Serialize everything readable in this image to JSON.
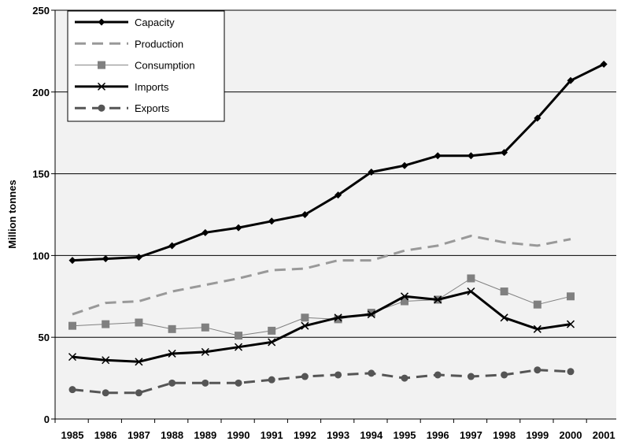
{
  "chart_data": {
    "type": "line",
    "title": "",
    "xlabel": "",
    "ylabel": "Million tonnes",
    "x": [
      "1985",
      "1986",
      "1987",
      "1988",
      "1989",
      "1990",
      "1991",
      "1992",
      "1993",
      "1994",
      "1995",
      "1996",
      "1997",
      "1998",
      "1999",
      "2000",
      "2001"
    ],
    "ylim": [
      0,
      250
    ],
    "yticks": [
      "0",
      "50",
      "100",
      "150",
      "200",
      "250"
    ],
    "grid": true,
    "legend_position": "top-left",
    "series": [
      {
        "name": "Capacity",
        "style": "solid-thick",
        "marker": "diamond",
        "color": "#000000",
        "values": [
          97,
          98,
          99,
          106,
          114,
          117,
          121,
          125,
          137,
          151,
          155,
          161,
          161,
          163,
          184,
          207,
          217
        ]
      },
      {
        "name": "Production",
        "style": "dashed",
        "marker": "none",
        "color": "#999999",
        "values": [
          64,
          71,
          72,
          78,
          82,
          86,
          91,
          92,
          97,
          97,
          103,
          106,
          112,
          108,
          106,
          110,
          null
        ]
      },
      {
        "name": "Consumption",
        "style": "thin",
        "marker": "square",
        "color": "#808080",
        "values": [
          57,
          58,
          59,
          55,
          56,
          51,
          54,
          62,
          61,
          65,
          72,
          73,
          86,
          78,
          70,
          75,
          null
        ]
      },
      {
        "name": "Imports",
        "style": "solid-thick",
        "marker": "x",
        "color": "#000000",
        "values": [
          38,
          36,
          35,
          40,
          41,
          44,
          47,
          57,
          62,
          64,
          75,
          73,
          78,
          62,
          55,
          58,
          null
        ]
      },
      {
        "name": "Exports",
        "style": "dashed-thick",
        "marker": "circle",
        "color": "#555555",
        "values": [
          18,
          16,
          16,
          22,
          22,
          22,
          24,
          26,
          27,
          28,
          25,
          27,
          26,
          27,
          30,
          29,
          null
        ]
      }
    ]
  }
}
